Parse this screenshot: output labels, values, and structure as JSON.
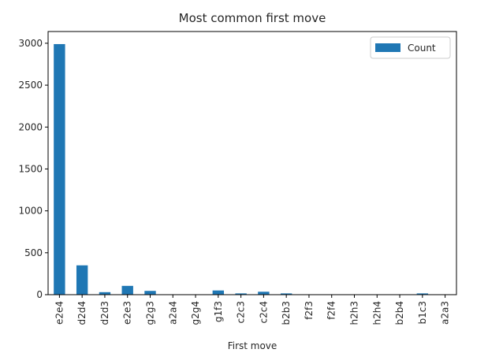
{
  "chart_data": {
    "type": "bar",
    "title": "Most common first move",
    "xlabel": "First move",
    "ylabel": "",
    "categories": [
      "e2e4",
      "d2d4",
      "d2d3",
      "e2e3",
      "g2g3",
      "a2a4",
      "g2g4",
      "g1f3",
      "c2c3",
      "c2c4",
      "b2b3",
      "f2f3",
      "f2f4",
      "h2h3",
      "h2h4",
      "b2b4",
      "b1c3",
      "a2a3"
    ],
    "series": [
      {
        "name": "Count",
        "values": [
          2990,
          350,
          30,
          105,
          45,
          3,
          3,
          50,
          15,
          35,
          15,
          3,
          3,
          3,
          3,
          3,
          15,
          3
        ],
        "color": "#1f77b4"
      }
    ],
    "ylim": [
      0,
      3140
    ],
    "yticks": [
      0,
      500,
      1000,
      1500,
      2000,
      2500,
      3000
    ],
    "grid": false,
    "legend": "top-right"
  }
}
